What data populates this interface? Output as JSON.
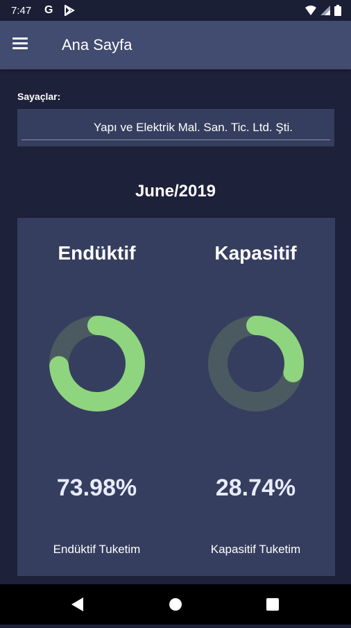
{
  "status_bar": {
    "time": "7:47",
    "google_glyph": "G"
  },
  "app_bar": {
    "title": "Ana Sayfa"
  },
  "meters": {
    "label": "Sayaçlar:",
    "selected": "Yapı ve Elektrik Mal. San. Tic. Ltd. Şti."
  },
  "period": "June/2019",
  "inductive": {
    "title": "Endüktif",
    "percent_text": "73.98%",
    "percent_value": 73.98,
    "caption": "Endüktif Tuketim"
  },
  "capacitive": {
    "title": "Kapasitif",
    "percent_text": "28.74%",
    "percent_value": 28.74,
    "caption": "Kapasitif Tuketim"
  },
  "colors": {
    "background": "#1d2139",
    "app_bar": "#424b70",
    "card": "#363e5f",
    "gauge_fill": "#8fd47f",
    "gauge_track": "#4b5a60"
  },
  "icons": {
    "menu": "hamburger-menu-icon",
    "nav_back": "back-triangle-icon",
    "nav_home": "home-circle-icon",
    "nav_recents": "recents-square-icon"
  }
}
